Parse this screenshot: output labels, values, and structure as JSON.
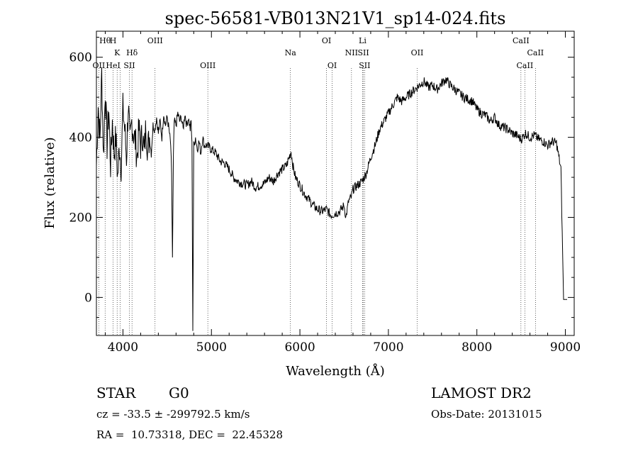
{
  "chart_data": {
    "type": "line",
    "title": "spec-56581-VB013N21V1_sp14-024.fits",
    "xlabel": "Wavelength (Å)",
    "ylabel": "Flux (relative)",
    "xlim": [
      3700,
      9100
    ],
    "ylim": [
      -95,
      665
    ],
    "x_ticks": [
      4000,
      5000,
      6000,
      7000,
      8000,
      9000
    ],
    "y_ticks": [
      0,
      200,
      400,
      600
    ],
    "grid": false,
    "line_color": "#000000",
    "series": [
      {
        "x": [
          3700,
          3720,
          3740,
          3760,
          3780,
          3800,
          3820,
          3840,
          3860,
          3880,
          3900,
          3920,
          3940,
          3960,
          3980,
          4000,
          4020,
          4040,
          4060,
          4080,
          4100,
          4120,
          4140,
          4160,
          4180,
          4200,
          4220,
          4240,
          4260,
          4280,
          4300,
          4320,
          4340,
          4360,
          4380,
          4400,
          4420,
          4440,
          4460,
          4480,
          4500,
          4520,
          4540,
          4550,
          4560,
          4570,
          4580,
          4600,
          4620,
          4640,
          4660,
          4680,
          4700,
          4720,
          4740,
          4760,
          4770,
          4780,
          4790,
          4800,
          4820,
          4840,
          4860,
          4880,
          4900,
          4920,
          4950,
          5000,
          5050,
          5100,
          5150,
          5200,
          5250,
          5300,
          5350,
          5400,
          5450,
          5500,
          5550,
          5600,
          5650,
          5700,
          5750,
          5800,
          5850,
          5900,
          5920,
          5950,
          6000,
          6050,
          6100,
          6150,
          6200,
          6250,
          6300,
          6350,
          6400,
          6450,
          6500,
          6520,
          6550,
          6580,
          6600,
          6650,
          6700,
          6750,
          6800,
          6850,
          6900,
          6950,
          7000,
          7050,
          7100,
          7150,
          7200,
          7250,
          7300,
          7350,
          7400,
          7450,
          7500,
          7550,
          7600,
          7650,
          7700,
          7750,
          7800,
          7850,
          7900,
          7950,
          8000,
          8050,
          8100,
          8150,
          8200,
          8250,
          8300,
          8350,
          8400,
          8450,
          8500,
          8550,
          8600,
          8650,
          8700,
          8750,
          8800,
          8850,
          8900,
          8950,
          8980,
          9000,
          9010,
          9020
        ],
        "y": [
          330,
          480,
          390,
          560,
          350,
          520,
          380,
          470,
          330,
          440,
          360,
          400,
          300,
          380,
          330,
          470,
          420,
          350,
          480,
          380,
          440,
          410,
          390,
          350,
          420,
          380,
          410,
          360,
          430,
          370,
          400,
          360,
          430,
          420,
          450,
          410,
          440,
          400,
          460,
          430,
          450,
          420,
          380,
          300,
          100,
          350,
          440,
          430,
          460,
          440,
          450,
          420,
          460,
          430,
          450,
          420,
          440,
          380,
          -80,
          380,
          400,
          370,
          390,
          360,
          400,
          380,
          380,
          370,
          360,
          340,
          335,
          320,
          300,
          290,
          285,
          280,
          290,
          275,
          280,
          285,
          300,
          290,
          310,
          320,
          330,
          365,
          330,
          300,
          280,
          260,
          245,
          230,
          220,
          215,
          220,
          205,
          210,
          215,
          230,
          200,
          240,
          250,
          270,
          280,
          290,
          310,
          350,
          380,
          420,
          440,
          460,
          480,
          500,
          490,
          500,
          510,
          520,
          530,
          540,
          525,
          530,
          520,
          535,
          545,
          530,
          520,
          510,
          500,
          495,
          490,
          470,
          460,
          455,
          440,
          450,
          430,
          425,
          420,
          410,
          405,
          395,
          410,
          400,
          405,
          395,
          390,
          380,
          390,
          385,
          320,
          -5,
          -5,
          -5,
          -5
        ]
      }
    ],
    "line_markers": [
      {
        "label": "Hθ",
        "x": 3798,
        "row": 1
      },
      {
        "label": "H",
        "x": 3889,
        "row": 1
      },
      {
        "label": "OIII",
        "x": 4363,
        "row": 1
      },
      {
        "label": "OI",
        "x": 6300,
        "row": 1
      },
      {
        "label": "Li",
        "x": 6708,
        "row": 1
      },
      {
        "label": "CaII",
        "x": 8498,
        "row": 1
      },
      {
        "label": "K",
        "x": 3934,
        "row": 2
      },
      {
        "label": "Hδ",
        "x": 4102,
        "row": 2
      },
      {
        "label": "Na",
        "x": 5893,
        "row": 2
      },
      {
        "label": "NII",
        "x": 6583,
        "row": 2
      },
      {
        "label": "SII",
        "x": 6717,
        "row": 2
      },
      {
        "label": "OII",
        "x": 7325,
        "row": 2
      },
      {
        "label": "CaII",
        "x": 8662,
        "row": 2
      },
      {
        "label": "OII",
        "x": 3727,
        "row": 3
      },
      {
        "label": "HeI",
        "x": 3889,
        "row": 3
      },
      {
        "label": "SII",
        "x": 4072,
        "row": 3
      },
      {
        "label": "OIII",
        "x": 4959,
        "row": 3
      },
      {
        "label": "OI",
        "x": 6364,
        "row": 3
      },
      {
        "label": "SII",
        "x": 6731,
        "row": 3
      },
      {
        "label": "CaII",
        "x": 8542,
        "row": 3
      }
    ],
    "marker_lines_x": [
      3727,
      3798,
      3889,
      3934,
      3970,
      4072,
      4102,
      4363,
      4959,
      5893,
      6300,
      6364,
      6583,
      6708,
      6717,
      6731,
      7325,
      8498,
      8542,
      8662
    ]
  },
  "info": {
    "object_class": "STAR",
    "subclass": "G0",
    "survey": "LAMOST DR2",
    "redshift_line": "cz = -33.5 ± -299792.5 km/s",
    "obs_date": "Obs-Date: 20131015",
    "coords": "RA =  10.73318, DEC =  22.45328"
  }
}
